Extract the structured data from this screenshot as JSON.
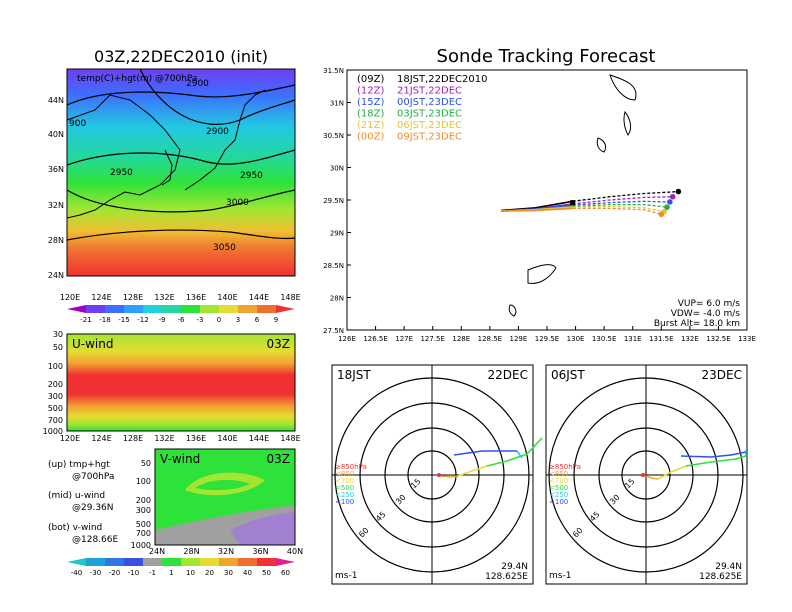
{
  "left_title": "03Z,22DEC2010 (init)",
  "right_title": "Sonde Tracking Forecast",
  "map_panel": {
    "caption": "temp(C)+hgt(m) @700hPa",
    "lat_labels": [
      "44N",
      "40N",
      "36N",
      "32N",
      "28N",
      "24N"
    ],
    "lon_labels": [
      "120E",
      "124E",
      "128E",
      "132E",
      "136E",
      "140E",
      "144E",
      "148E"
    ],
    "contour_labels": [
      "2900",
      "2900",
      "2950",
      "2950",
      "3000",
      "3050",
      "900"
    ],
    "colorbar_labels": [
      "-21",
      "-18",
      "-15",
      "-12",
      "-9",
      "-6",
      "-3",
      "0",
      "3",
      "6",
      "9"
    ],
    "colorbar_colors": [
      "#a000c8",
      "#6e3ff0",
      "#3f6cff",
      "#2aa1ff",
      "#22d0d8",
      "#22d8a0",
      "#2fe23a",
      "#a2e632",
      "#e6dc32",
      "#f0a532",
      "#f06e32",
      "#f03232"
    ]
  },
  "u_panel": {
    "label": "U-wind",
    "time": "03Z",
    "y_labels": [
      "30",
      "50",
      "100",
      "200",
      "300",
      "500",
      "700",
      "1000"
    ],
    "x_labels": [
      "120E",
      "124E",
      "128E",
      "132E",
      "136E",
      "140E",
      "144E",
      "148E"
    ]
  },
  "v_panel": {
    "label": "V-wind",
    "time": "03Z",
    "y_labels": [
      "50",
      "100",
      "200",
      "300",
      "500",
      "700",
      "1000"
    ],
    "x_labels": [
      "24N",
      "28N",
      "32N",
      "36N",
      "40N"
    ]
  },
  "notes": [
    {
      "line1": "(up) tmp+hgt",
      "line2": "@700hPa"
    },
    {
      "line1": "(mid) u-wind",
      "line2": "@29.36N"
    },
    {
      "line1": "(bot) v-wind",
      "line2": "@128.66E"
    }
  ],
  "wind_colorbar": {
    "labels": [
      "-40",
      "-30",
      "-20",
      "-10",
      "-1",
      "1",
      "10",
      "20",
      "30",
      "40",
      "50",
      "60"
    ],
    "colors": [
      "#1ec8c8",
      "#1ea0d8",
      "#2a78e0",
      "#3a50e0",
      "#a0a0a0",
      "#2fe23a",
      "#a2e632",
      "#e6dc32",
      "#f0a532",
      "#f06e32",
      "#f03232",
      "#e01e8c"
    ]
  },
  "chart_data": {
    "type": "line",
    "title": "Sonde Tracking Forecast",
    "xlim": [
      126,
      133
    ],
    "ylim": [
      27.5,
      31.5
    ],
    "x_ticks": [
      "126E",
      "126.5E",
      "127E",
      "127.5E",
      "128E",
      "128.5E",
      "129E",
      "129.5E",
      "130E",
      "130.5E",
      "131E",
      "131.5E",
      "132E",
      "132.5E",
      "133E"
    ],
    "y_ticks": [
      "27.5N",
      "28N",
      "28.5N",
      "29N",
      "29.5N",
      "30N",
      "30.5N",
      "31N",
      "31.5N"
    ],
    "legend": [
      {
        "code": "(09Z)",
        "text": "18JST,22DEC2010",
        "color": "#000000"
      },
      {
        "code": "(12Z)",
        "text": "21JST,22DEC",
        "color": "#a020c0"
      },
      {
        "code": "(15Z)",
        "text": "00JST,23DEC",
        "color": "#3050f0"
      },
      {
        "code": "(18Z)",
        "text": "03JST,23DEC",
        "color": "#20b040"
      },
      {
        "code": "(21Z)",
        "text": "06JST,23DEC",
        "color": "#e0c830"
      },
      {
        "code": "(00Z)",
        "text": "09JST,23DEC",
        "color": "#f08c28"
      }
    ],
    "series": [
      {
        "color": "#000000",
        "points": [
          [
            128.7,
            29.34
          ],
          [
            129.3,
            29.38
          ],
          [
            129.95,
            29.48
          ],
          [
            130.6,
            29.55
          ],
          [
            131.2,
            29.6
          ],
          [
            131.8,
            29.63
          ]
        ]
      },
      {
        "color": "#a020c0",
        "points": [
          [
            128.7,
            29.33
          ],
          [
            129.3,
            29.36
          ],
          [
            129.95,
            29.44
          ],
          [
            130.6,
            29.5
          ],
          [
            131.2,
            29.54
          ],
          [
            131.7,
            29.55
          ]
        ]
      },
      {
        "color": "#3050f0",
        "points": [
          [
            128.7,
            29.33
          ],
          [
            129.3,
            29.36
          ],
          [
            129.95,
            29.42
          ],
          [
            130.6,
            29.46
          ],
          [
            131.2,
            29.48
          ],
          [
            131.65,
            29.47
          ]
        ]
      },
      {
        "color": "#20b040",
        "points": [
          [
            128.7,
            29.33
          ],
          [
            129.3,
            29.35
          ],
          [
            129.95,
            29.4
          ],
          [
            130.6,
            29.43
          ],
          [
            131.2,
            29.43
          ],
          [
            131.6,
            29.39
          ]
        ]
      },
      {
        "color": "#e0c830",
        "points": [
          [
            128.7,
            29.33
          ],
          [
            129.3,
            29.35
          ],
          [
            129.95,
            29.39
          ],
          [
            130.6,
            29.4
          ],
          [
            131.2,
            29.38
          ],
          [
            131.55,
            29.32
          ]
        ]
      },
      {
        "color": "#f08c28",
        "points": [
          [
            128.7,
            29.33
          ],
          [
            129.3,
            29.34
          ],
          [
            129.95,
            29.37
          ],
          [
            130.6,
            29.37
          ],
          [
            131.2,
            29.35
          ],
          [
            131.5,
            29.28
          ]
        ]
      }
    ],
    "launch_point": [
      129.95,
      29.46
    ],
    "info": [
      "VUP= 6.0 m/s",
      "VDW= -4.0 m/s",
      "Burst Alt= 18.0 km"
    ]
  },
  "hodo_left": {
    "time": "18JST",
    "date": "22DEC",
    "ring_labels": [
      "15",
      "30",
      "45",
      "60"
    ],
    "level_legend": [
      {
        "text": "≥850hPa",
        "color": "#f03232"
      },
      {
        "text": "<850",
        "color": "#f0a532"
      },
      {
        "text": "<700",
        "color": "#e6dc32"
      },
      {
        "text": "<500",
        "color": "#2fe23a"
      },
      {
        "text": "<250",
        "color": "#22d0d8"
      },
      {
        "text": "<100",
        "color": "#3050f0"
      }
    ],
    "units": "ms-1",
    "lat": "29.4N",
    "lon": "128.625E"
  },
  "hodo_right": {
    "time": "06JST",
    "date": "23DEC",
    "ring_labels": [
      "15",
      "30",
      "45",
      "60"
    ],
    "level_legend": [
      {
        "text": "≥850hPa",
        "color": "#f03232"
      },
      {
        "text": "<850",
        "color": "#f0a532"
      },
      {
        "text": "<700",
        "color": "#e6dc32"
      },
      {
        "text": "<500",
        "color": "#2fe23a"
      },
      {
        "text": "<250",
        "color": "#22d0d8"
      },
      {
        "text": "<100",
        "color": "#3050f0"
      }
    ],
    "units": "ms-1",
    "lat": "29.4N",
    "lon": "128.625E"
  }
}
